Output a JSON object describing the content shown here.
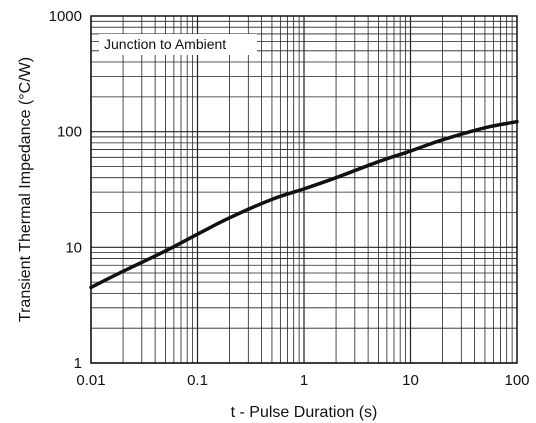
{
  "chart_data": {
    "type": "line",
    "title": "",
    "xlabel": "t - Pulse Duration (s)",
    "ylabel": "Transient Thermal Impedance (°C/W)",
    "xscale": "log",
    "yscale": "log",
    "xlim": [
      0.01,
      100
    ],
    "ylim": [
      1,
      1000
    ],
    "grid": true,
    "x_ticks": [
      0.01,
      0.1,
      1,
      10,
      100
    ],
    "x_tick_labels": [
      "0.01",
      "0.1",
      "1",
      "10",
      "100"
    ],
    "y_ticks": [
      1,
      10,
      100,
      1000
    ],
    "y_tick_labels": [
      "1",
      "10",
      "100",
      "1000"
    ],
    "annotation": "Junction to Ambient",
    "annotation_placement": "top-left",
    "line_color": "#111111",
    "series": [
      {
        "name": "",
        "x": [
          0.01,
          0.02,
          0.05,
          0.1,
          0.2,
          0.5,
          1,
          2,
          5,
          10,
          20,
          50,
          100
        ],
        "y": [
          4.5,
          6.2,
          9.3,
          13,
          18,
          26,
          32,
          40,
          55,
          68,
          85,
          108,
          122
        ]
      }
    ]
  }
}
